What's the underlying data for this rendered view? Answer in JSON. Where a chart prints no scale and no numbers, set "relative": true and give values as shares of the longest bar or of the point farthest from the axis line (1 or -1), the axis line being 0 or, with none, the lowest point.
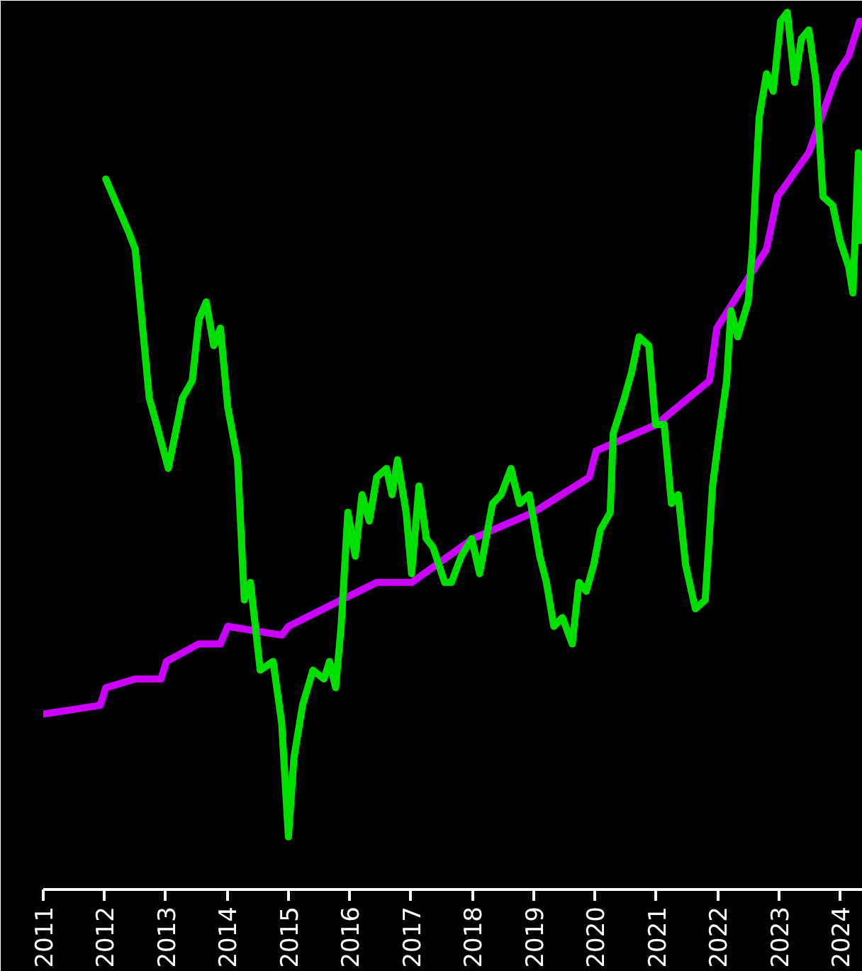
{
  "chart_data": {
    "type": "line",
    "relative": true,
    "xlim": [
      2011,
      2024.37
    ],
    "xticks": [
      2011,
      2012,
      2013,
      2014,
      2015,
      2016,
      2017,
      2018,
      2019,
      2020,
      2021,
      2022,
      2023,
      2024
    ],
    "grid": false,
    "series": [
      {
        "color": "#cc00ff",
        "x": [
          2011.0,
          2011.93,
          2012.02,
          2012.5,
          2012.92,
          2013.01,
          2013.54,
          2013.89,
          2014.01,
          2014.89,
          2015.0,
          2015.86,
          2016.44,
          2017.01,
          2018.01,
          2019.0,
          2019.91,
          2020.02,
          2021.0,
          2021.87,
          2021.99,
          2022.8,
          2022.98,
          2023.49,
          2023.95,
          2024.14,
          2024.32
        ],
        "values": [
          0.2,
          0.21,
          0.23,
          0.24,
          0.24,
          0.26,
          0.28,
          0.28,
          0.3,
          0.29,
          0.3,
          0.33,
          0.35,
          0.35,
          0.4,
          0.43,
          0.47,
          0.5,
          0.53,
          0.58,
          0.64,
          0.73,
          0.79,
          0.84,
          0.93,
          0.95,
          0.99
        ]
      },
      {
        "color": "#00e000",
        "x": [
          2012.02,
          2012.39,
          2012.5,
          2012.73,
          2012.85,
          2013.04,
          2013.27,
          2013.43,
          2013.54,
          2013.66,
          2013.78,
          2013.89,
          2014.01,
          2014.17,
          2014.28,
          2014.38,
          2014.54,
          2014.75,
          2014.89,
          2015.0,
          2015.09,
          2015.23,
          2015.4,
          2015.58,
          2015.67,
          2015.77,
          2015.86,
          2015.97,
          2016.09,
          2016.2,
          2016.32,
          2016.44,
          2016.6,
          2016.69,
          2016.78,
          2016.92,
          2017.01,
          2017.13,
          2017.25,
          2017.36,
          2017.55,
          2017.66,
          2017.82,
          2017.99,
          2018.12,
          2018.33,
          2018.47,
          2018.63,
          2018.77,
          2018.93,
          2019.1,
          2019.21,
          2019.33,
          2019.47,
          2019.63,
          2019.74,
          2019.86,
          2019.98,
          2020.09,
          2020.25,
          2020.3,
          2020.48,
          2020.6,
          2020.72,
          2020.88,
          2020.99,
          2021.13,
          2021.25,
          2021.36,
          2021.48,
          2021.64,
          2021.8,
          2021.92,
          2022.03,
          2022.15,
          2022.22,
          2022.33,
          2022.5,
          2022.57,
          2022.68,
          2022.8,
          2022.91,
          2023.03,
          2023.14,
          2023.26,
          2023.37,
          2023.49,
          2023.61,
          2023.72,
          2023.88,
          2024.0,
          2024.14,
          2024.21,
          2024.3,
          2024.32
        ],
        "values": [
          0.81,
          0.75,
          0.73,
          0.56,
          0.53,
          0.48,
          0.56,
          0.58,
          0.65,
          0.67,
          0.62,
          0.64,
          0.55,
          0.49,
          0.33,
          0.35,
          0.25,
          0.26,
          0.19,
          0.06,
          0.15,
          0.21,
          0.25,
          0.24,
          0.26,
          0.23,
          0.3,
          0.43,
          0.38,
          0.45,
          0.42,
          0.47,
          0.48,
          0.45,
          0.49,
          0.43,
          0.36,
          0.46,
          0.4,
          0.39,
          0.35,
          0.35,
          0.38,
          0.4,
          0.36,
          0.44,
          0.45,
          0.48,
          0.44,
          0.45,
          0.38,
          0.35,
          0.3,
          0.31,
          0.28,
          0.35,
          0.34,
          0.37,
          0.41,
          0.43,
          0.52,
          0.56,
          0.59,
          0.63,
          0.62,
          0.53,
          0.53,
          0.44,
          0.45,
          0.37,
          0.32,
          0.33,
          0.46,
          0.52,
          0.58,
          0.66,
          0.63,
          0.67,
          0.73,
          0.88,
          0.93,
          0.91,
          0.99,
          1.0,
          0.92,
          0.97,
          0.98,
          0.92,
          0.79,
          0.78,
          0.74,
          0.71,
          0.68,
          0.84,
          0.74
        ]
      }
    ]
  }
}
